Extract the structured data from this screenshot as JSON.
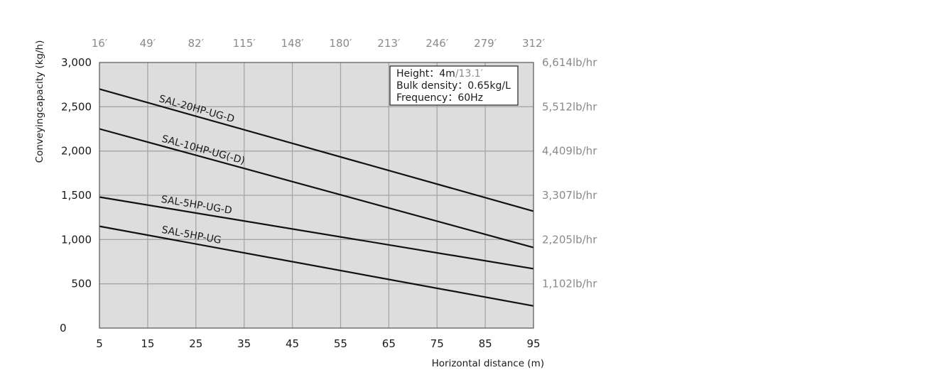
{
  "chart_data": {
    "type": "line",
    "xlabel": "Horizontal distance (m)",
    "ylabel": "Conveyingcapacity (kg/h)",
    "x_ticks": [
      "5",
      "15",
      "25",
      "35",
      "45",
      "55",
      "65",
      "75",
      "85",
      "95"
    ],
    "y_ticks": [
      "0",
      "500",
      "1,000",
      "1,500",
      "2,000",
      "2,500",
      "3,000"
    ],
    "xlim": [
      5,
      95
    ],
    "ylim": [
      0,
      3000
    ],
    "top_axis_ticks": [
      "16′",
      "49′",
      "82′",
      "115′",
      "148′",
      "180′",
      "213′",
      "246′",
      "279′",
      "312′"
    ],
    "right_axis_ticks": [
      {
        "value": 500,
        "label": "1,102lb/hr"
      },
      {
        "value": 1000,
        "label": "2,205lb/hr"
      },
      {
        "value": 1500,
        "label": "3,307lb/hr"
      },
      {
        "value": 2000,
        "label": "4,409lb/hr"
      },
      {
        "value": 2500,
        "label": "5,512lb/hr"
      },
      {
        "value": 3000,
        "label": "6,614lb/hr"
      }
    ],
    "grid": true,
    "legend": "none",
    "series": [
      {
        "name": "SAL-20HP-UG-D",
        "x": [
          5,
          95
        ],
        "y": [
          2700,
          1320
        ]
      },
      {
        "name": "SAL-10HP-UG(-D)",
        "x": [
          5,
          95
        ],
        "y": [
          2250,
          910
        ]
      },
      {
        "name": "SAL-5HP-UG-D",
        "x": [
          5,
          95
        ],
        "y": [
          1480,
          670
        ]
      },
      {
        "name": "SAL-5HP-UG",
        "x": [
          5,
          95
        ],
        "y": [
          1150,
          250
        ]
      }
    ],
    "annotations": {
      "height_label": "Height：4m",
      "height_imperial": "/13.1′",
      "bulk_density": "Bulk density：0.65kg/L",
      "frequency": "Frequency：60Hz"
    },
    "colors": {
      "plot_background": "#dddddd",
      "grid": "#a6a6a6",
      "line": "#111111",
      "secondary_text": "#8a8a8a"
    }
  }
}
